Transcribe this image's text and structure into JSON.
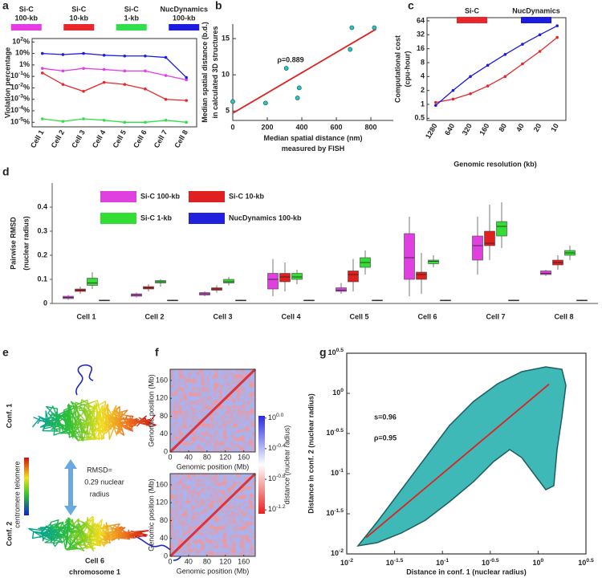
{
  "chart_data": [
    {
      "panel": "a",
      "type": "line",
      "ylabel": "Violation percentage",
      "yscale": "log",
      "ylim": [
        4e-06,
        200
      ],
      "yticks": [
        {
          "value": 100,
          "label": "10",
          "exponent": "2",
          "suffix": "%"
        },
        {
          "value": 10,
          "label": "10%"
        },
        {
          "value": 1,
          "label": "1%"
        },
        {
          "value": 0.1,
          "label": "10",
          "exponent": "-1",
          "suffix": "%"
        },
        {
          "value": 0.01,
          "label": "10",
          "exponent": "-2",
          "suffix": "%"
        },
        {
          "value": 0.001,
          "label": "10",
          "exponent": "-3",
          "suffix": "%"
        },
        {
          "value": 0.0001,
          "label": "10",
          "exponent": "-4",
          "suffix": "%"
        },
        {
          "value": 1e-05,
          "label": "10",
          "exponent": "-5",
          "suffix": "%"
        }
      ],
      "categories": [
        "Cell 1",
        "Cell 2",
        "Cell 3",
        "Cell 4",
        "Cell 5",
        "Cell 6",
        "Cell 7",
        "Cell 8"
      ],
      "legend": "top",
      "series": [
        {
          "name": [
            "Si-C",
            "100-kb"
          ],
          "color": "#e83be8",
          "values": [
            0.5,
            0.3,
            0.5,
            0.4,
            0.3,
            0.3,
            0.12,
            0.05
          ]
        },
        {
          "name": [
            "Si-C",
            "10-kb"
          ],
          "color": "#e8262b",
          "values": [
            0.2,
            0.02,
            0.005,
            0.03,
            0.02,
            0.008,
            0.001,
            0.0008
          ]
        },
        {
          "name": [
            "Si-C",
            "1-kb"
          ],
          "color": "#2fe04a",
          "values": [
            2e-05,
            1.2e-05,
            2e-05,
            1.5e-05,
            1e-05,
            1e-05,
            1.5e-05,
            1e-05
          ]
        },
        {
          "name": [
            "NucDynamics",
            "100-kb"
          ],
          "color": "#1c1ce0",
          "values": [
            10,
            8,
            10,
            7,
            6,
            6,
            4.5,
            0.08
          ]
        }
      ]
    },
    {
      "panel": "b",
      "type": "scatter",
      "xlabel": [
        "Median spatial distance (nm)",
        "measured by FISH"
      ],
      "ylabel": [
        "Median spatial distance (b.d.)",
        "in calculated 3D structures"
      ],
      "annotations": [
        "ρ=0.889"
      ],
      "x": [
        0,
        190,
        310,
        375,
        385,
        680,
        690,
        820
      ],
      "y": [
        6.3,
        6.1,
        10.9,
        6.8,
        8.2,
        13.5,
        16.5,
        16.5
      ],
      "xlim": [
        0,
        930
      ],
      "ylim": [
        3.7,
        17
      ],
      "xticks": [
        0,
        200,
        400,
        600,
        800
      ],
      "yticks": [
        5,
        10,
        15
      ],
      "color": "#2ec4c4",
      "fit": {
        "x": [
          0,
          830
        ],
        "y": [
          4.7,
          16.3
        ],
        "color": "#e02020"
      }
    },
    {
      "panel": "c",
      "type": "line",
      "xlabel": "Genomic resolution (kb)",
      "ylabel": [
        "Computational cost",
        "(cpu-hour)"
      ],
      "yscale": "log",
      "ylim": [
        0.45,
        75
      ],
      "yticks": [
        0.5,
        1,
        2,
        4,
        8,
        16,
        32,
        64
      ],
      "categories": [
        "1280",
        "640",
        "320",
        "160",
        "80",
        "40",
        "20",
        "10"
      ],
      "legend": "top",
      "series": [
        {
          "name": "Si-C",
          "color": "#e8262b",
          "values": [
            1.1,
            1.3,
            1.7,
            2.5,
            4,
            7.5,
            14,
            28
          ]
        },
        {
          "name": "NucDynamics",
          "color": "#1c1ce0",
          "values": [
            0.95,
            2,
            4,
            7,
            12,
            20,
            32,
            50
          ]
        }
      ]
    },
    {
      "panel": "d",
      "type": "box",
      "ylabel": [
        "Pairwise RMSD",
        "(nuclear radius)"
      ],
      "ylim": [
        0,
        0.5
      ],
      "yticks": [
        0,
        0.1,
        0.2,
        0.3,
        0.4
      ],
      "legend": "upper left",
      "categories": [
        "Cell 1",
        "Cell 2",
        "Cell 3",
        "Cell 4",
        "Cell 5",
        "Cell 6",
        "Cell 7",
        "Cell 8"
      ],
      "series": [
        {
          "name": "Si-C 100-kb",
          "color": "#e040e0",
          "values": [
            [
              0.015,
              0.02,
              0.025,
              0.03,
              0.035
            ],
            [
              0.025,
              0.03,
              0.035,
              0.04,
              0.045
            ],
            [
              0.03,
              0.035,
              0.04,
              0.045,
              0.05
            ],
            [
              0.03,
              0.06,
              0.1,
              0.125,
              0.185
            ],
            [
              0.04,
              0.05,
              0.055,
              0.065,
              0.085
            ],
            [
              0.03,
              0.1,
              0.19,
              0.29,
              0.36
            ],
            [
              0.12,
              0.18,
              0.24,
              0.28,
              0.36
            ],
            [
              0.115,
              0.12,
              0.125,
              0.135,
              0.14
            ]
          ]
        },
        {
          "name": "Si-C 10-kb",
          "color": "#e02020",
          "values": [
            [
              0.04,
              0.05,
              0.055,
              0.06,
              0.07
            ],
            [
              0.05,
              0.06,
              0.065,
              0.07,
              0.08
            ],
            [
              0.045,
              0.055,
              0.06,
              0.065,
              0.075
            ],
            [
              0.05,
              0.09,
              0.11,
              0.125,
              0.17
            ],
            [
              0.05,
              0.09,
              0.12,
              0.135,
              0.185
            ],
            [
              0.04,
              0.1,
              0.12,
              0.13,
              0.21
            ],
            [
              0.18,
              0.24,
              0.25,
              0.3,
              0.41
            ],
            [
              0.14,
              0.16,
              0.17,
              0.18,
              0.2
            ]
          ]
        },
        {
          "name": "Si-C 1-kb",
          "color": "#33dd33",
          "values": [
            [
              0.06,
              0.075,
              0.085,
              0.105,
              0.13
            ],
            [
              0.07,
              0.085,
              0.09,
              0.095,
              0.1
            ],
            [
              0.075,
              0.085,
              0.09,
              0.1,
              0.11
            ],
            [
              0.08,
              0.1,
              0.11,
              0.125,
              0.14
            ],
            [
              0.12,
              0.15,
              0.17,
              0.19,
              0.22
            ],
            [
              0.15,
              0.165,
              0.175,
              0.18,
              0.2
            ],
            [
              0.23,
              0.28,
              0.32,
              0.34,
              0.42
            ],
            [
              0.18,
              0.2,
              0.21,
              0.22,
              0.24
            ]
          ]
        },
        {
          "name": "NucDynamics 100-kb",
          "color": "#2020dd",
          "values": [
            [
              0.01,
              0.012,
              0.013,
              0.014,
              0.016
            ],
            [
              0.01,
              0.012,
              0.013,
              0.014,
              0.016
            ],
            [
              0.01,
              0.012,
              0.013,
              0.014,
              0.016
            ],
            [
              0.01,
              0.012,
              0.013,
              0.014,
              0.016
            ],
            [
              0.01,
              0.012,
              0.013,
              0.014,
              0.016
            ],
            [
              0.01,
              0.012,
              0.013,
              0.014,
              0.016
            ],
            [
              0.01,
              0.012,
              0.013,
              0.014,
              0.016
            ],
            [
              0.01,
              0.012,
              0.013,
              0.014,
              0.016
            ]
          ]
        }
      ]
    },
    {
      "panel": "e",
      "type": "structure",
      "labels": {
        "conf1": "Conf. 1",
        "conf2": "Conf. 2",
        "telomere": "telomere",
        "centromere": "centromere",
        "rmsd": [
          "RMSD=",
          "0.29 nuclear",
          "radius"
        ],
        "caption": [
          "Cell 6",
          "chromosome 1"
        ]
      }
    },
    {
      "panel": "f",
      "type": "heatmap",
      "xlabel": "Genomic position (Mb)",
      "ylabel": "Genomic position (Mb)",
      "xlim": [
        0,
        185
      ],
      "ylim": [
        0,
        185
      ],
      "xticks": [
        0,
        40,
        80,
        120,
        160
      ],
      "yticks": [
        0,
        40,
        80,
        120,
        160
      ],
      "colorbar": {
        "label": "distance (nuclear radius)",
        "scale": "log",
        "lim": [
          0.056,
          1.07
        ],
        "colors": [
          "#2a2ae0",
          "#ffffff",
          "#e82020"
        ],
        "ticks": [
          {
            "value": 1,
            "label": "10",
            "exponent": "0.0"
          },
          {
            "value": 0.398,
            "label": "10",
            "exponent": "-0.4"
          },
          {
            "value": 0.158,
            "label": "10",
            "exponent": "-0.8"
          },
          {
            "value": 0.063,
            "label": "10",
            "exponent": "-1.2"
          }
        ]
      }
    },
    {
      "panel": "g",
      "type": "scatter",
      "xlabel": "Distance in conf. 1 (nuclear radius)",
      "ylabel": "Distance in conf. 2 (nuclear radius)",
      "xscale": "log",
      "yscale": "log",
      "xlim": [
        0.01,
        3.1623
      ],
      "ylim": [
        0.01,
        3.1623
      ],
      "xticks": [
        {
          "value": 0.01,
          "label": "10",
          "exponent": "-2"
        },
        {
          "value": 0.031623,
          "label": "10",
          "exponent": "-1.5"
        },
        {
          "value": 0.1,
          "label": "10",
          "exponent": "-1"
        },
        {
          "value": 0.31623,
          "label": "10",
          "exponent": "-0.5"
        },
        {
          "value": 1,
          "label": "10",
          "exponent": "0"
        },
        {
          "value": 3.1623,
          "label": "10",
          "exponent": "0.5"
        }
      ],
      "yticks": [
        {
          "value": 0.01,
          "label": "10",
          "exponent": "-2"
        },
        {
          "value": 0.031623,
          "label": "10",
          "exponent": "-1.5"
        },
        {
          "value": 0.1,
          "label": "10",
          "exponent": "-1"
        },
        {
          "value": 0.31623,
          "label": "10",
          "exponent": "-0.5"
        },
        {
          "value": 1,
          "label": "10",
          "exponent": "0"
        },
        {
          "value": 3.1623,
          "label": "10",
          "exponent": "0.5"
        }
      ],
      "annotations": [
        "s=0.96",
        "ρ=0.95"
      ],
      "color": "#3fb8b8",
      "fit": {
        "x": [
          0.016,
          1.3
        ],
        "y": [
          0.016,
          1.3
        ],
        "color": "#e02020"
      }
    }
  ]
}
